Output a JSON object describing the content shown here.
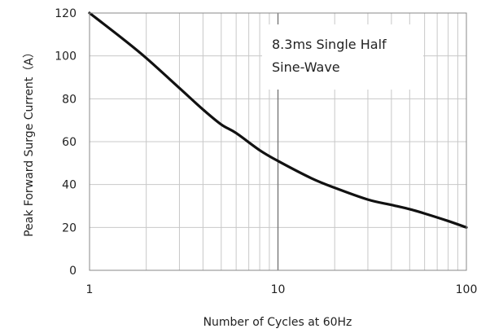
{
  "chart_data": {
    "type": "line",
    "title": "",
    "xlabel": "Number of Cycles at 60Hz",
    "ylabel": "Peak Forward Surge Current（A）",
    "x_scale": "log",
    "xlim": [
      1,
      100
    ],
    "ylim": [
      0,
      120
    ],
    "x_ticks": [
      1,
      10,
      100
    ],
    "x_tick_labels": [
      "1",
      "10",
      "100"
    ],
    "y_ticks": [
      0,
      20,
      40,
      60,
      80,
      100,
      120
    ],
    "y_tick_labels": [
      "0",
      "20",
      "40",
      "60",
      "80",
      "100",
      "120"
    ],
    "grid": true,
    "annotation": [
      "8.3ms Single Half",
      "Sine-Wave"
    ],
    "series": [
      {
        "x": [
          1,
          1.5,
          2,
          3,
          4,
          5,
          6,
          8,
          10,
          15,
          20,
          30,
          40,
          50,
          60,
          80,
          100
        ],
        "y": [
          120,
          108,
          99,
          85,
          75,
          68,
          64,
          56,
          51,
          43,
          38.5,
          33,
          30.5,
          28.5,
          26.5,
          23,
          20
        ]
      }
    ]
  }
}
